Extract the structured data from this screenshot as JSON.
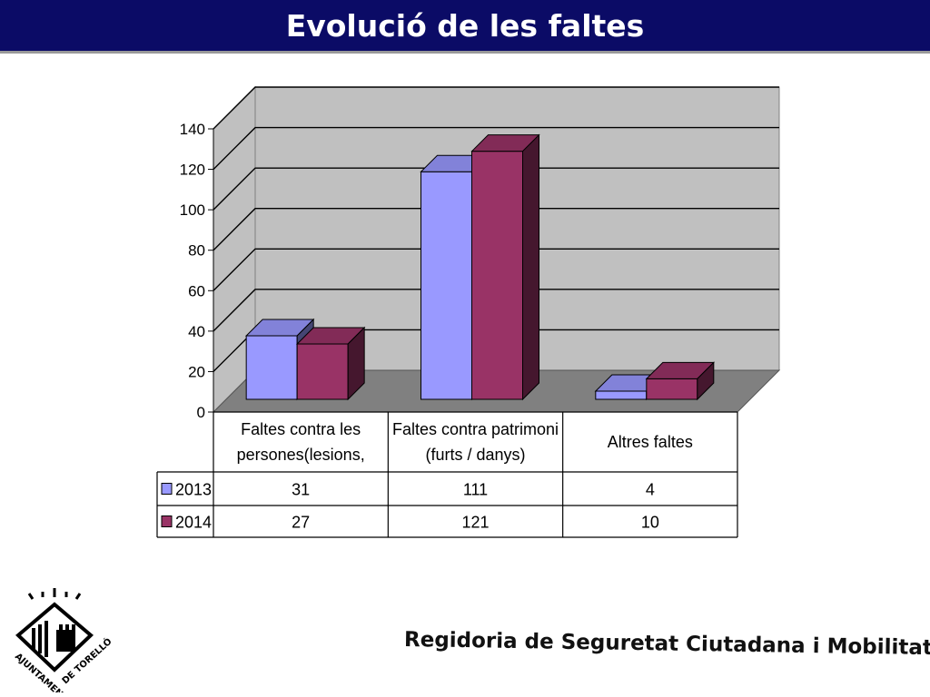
{
  "header": {
    "title": "Evolució de les faltes"
  },
  "footer": {
    "text": "Regidoria de Seguretat Ciutadana i Mobilitat"
  },
  "logo": {
    "top_text": "AJUNTAMENT",
    "bottom_text": "DE TORELLÓ",
    "icon": "castle-tower-icon"
  },
  "colors": {
    "title_bar": "#0b0b66",
    "series_2013": "#9999ff",
    "series_2014": "#993366",
    "wall": "#c0c0c0",
    "floor": "#808080"
  },
  "chart_data": {
    "type": "bar",
    "three_d": true,
    "categories": [
      [
        "Faltes contra les",
        "persones(lesions,"
      ],
      [
        "Faltes contra patrimoni",
        "(furts / danys)"
      ],
      [
        "Altres faltes"
      ]
    ],
    "series": [
      {
        "name": "2013",
        "values": [
          31,
          111,
          4
        ]
      },
      {
        "name": "2014",
        "values": [
          27,
          121,
          10
        ]
      }
    ],
    "ylim": [
      0,
      140
    ],
    "yticks": [
      "0",
      "20",
      "40",
      "60",
      "80",
      "100",
      "120",
      "140"
    ],
    "grid": true,
    "data_table": true
  }
}
